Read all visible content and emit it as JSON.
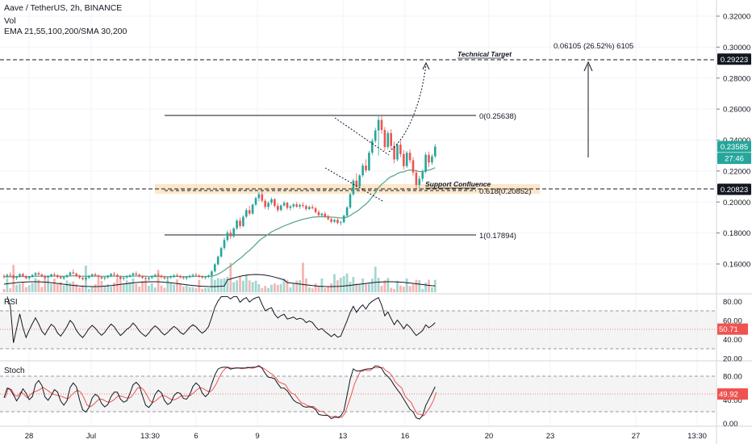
{
  "header": {
    "symbol_line": "Aave / TetherUS, 2h, BINANCE",
    "vol_label": "Vol",
    "ma_line": "EMA 21,55,100,200/SMA 30,200"
  },
  "chart_data": {
    "type": "candlestick",
    "price_axis": {
      "ticks": [
        "0.32000",
        "0.30000",
        "0.28000",
        "0.26000",
        "0.24000",
        "0.22000",
        "0.20000",
        "0.18000",
        "0.16000"
      ],
      "ylim": [
        0.145,
        0.33
      ]
    },
    "price_badges": [
      {
        "label": "0.29223",
        "value": 0.29223,
        "color": "#131722"
      },
      {
        "label": "0.23585",
        "value": 0.23585,
        "color": "#26a69a"
      },
      {
        "label": "27:46",
        "value": 0.2282,
        "color": "#26a69a"
      },
      {
        "label": "0.20823",
        "value": 0.20823,
        "color": "#131722"
      }
    ],
    "time_axis": [
      "28",
      "Jul",
      "13:30",
      "6",
      "9",
      "13",
      "16",
      "20",
      "23",
      "27",
      "13:30"
    ],
    "annotations": {
      "technical_target": "Technical Target",
      "measure": "0.06105 (26.52%) 6105",
      "support": "Support Confluence",
      "fib_0": "0(0.25638)",
      "fib_618": "0.618(0.20852)",
      "fib_1": "1(0.17894)"
    },
    "key_levels": {
      "target": 0.29223,
      "support": 0.20823,
      "fib_0": 0.25638,
      "fib_618": 0.20852,
      "fib_1": 0.17894
    },
    "candles": [
      [
        0.1523,
        0.1534,
        0.1504,
        0.1517
      ],
      [
        0.1517,
        0.1538,
        0.1508,
        0.153
      ],
      [
        0.153,
        0.1546,
        0.1521,
        0.1526
      ],
      [
        0.1526,
        0.1532,
        0.1503,
        0.151
      ],
      [
        0.151,
        0.1525,
        0.1496,
        0.1519
      ],
      [
        0.1519,
        0.1541,
        0.1512,
        0.1535
      ],
      [
        0.1535,
        0.1543,
        0.1515,
        0.1522
      ],
      [
        0.1522,
        0.153,
        0.15,
        0.1508
      ],
      [
        0.1508,
        0.1524,
        0.1495,
        0.1518
      ],
      [
        0.1518,
        0.1536,
        0.151,
        0.1529
      ],
      [
        0.1529,
        0.1548,
        0.152,
        0.1541
      ],
      [
        0.1541,
        0.1552,
        0.1526,
        0.1532
      ],
      [
        0.1532,
        0.154,
        0.1514,
        0.1519
      ],
      [
        0.1519,
        0.1531,
        0.1501,
        0.1511
      ],
      [
        0.1511,
        0.1528,
        0.1498,
        0.1522
      ],
      [
        0.1522,
        0.1539,
        0.1514,
        0.1533
      ],
      [
        0.1533,
        0.1545,
        0.1522,
        0.1528
      ],
      [
        0.1528,
        0.1535,
        0.1508,
        0.1515
      ],
      [
        0.1515,
        0.1526,
        0.15,
        0.1507
      ],
      [
        0.1507,
        0.1521,
        0.1495,
        0.1516
      ],
      [
        0.1516,
        0.1534,
        0.1508,
        0.1528
      ],
      [
        0.1528,
        0.1551,
        0.152,
        0.1545
      ],
      [
        0.1545,
        0.1566,
        0.1532,
        0.1538
      ],
      [
        0.1538,
        0.1546,
        0.1515,
        0.1522
      ],
      [
        0.1522,
        0.153,
        0.1502,
        0.151
      ],
      [
        0.151,
        0.1522,
        0.1494,
        0.1501
      ],
      [
        0.1501,
        0.1516,
        0.149,
        0.1511
      ],
      [
        0.1511,
        0.1529,
        0.1503,
        0.1524
      ],
      [
        0.1524,
        0.154,
        0.1515,
        0.1533
      ],
      [
        0.1533,
        0.1544,
        0.152,
        0.1526
      ],
      [
        0.1526,
        0.1533,
        0.1509,
        0.1515
      ],
      [
        0.1515,
        0.1524,
        0.1499,
        0.1506
      ],
      [
        0.1506,
        0.1519,
        0.1494,
        0.1513
      ],
      [
        0.1513,
        0.153,
        0.1505,
        0.1525
      ],
      [
        0.1525,
        0.1542,
        0.1516,
        0.1536
      ],
      [
        0.1536,
        0.1549,
        0.1524,
        0.153
      ],
      [
        0.153,
        0.1538,
        0.1511,
        0.1517
      ],
      [
        0.1517,
        0.1526,
        0.15,
        0.1505
      ],
      [
        0.1505,
        0.1518,
        0.1492,
        0.1512
      ],
      [
        0.1512,
        0.1529,
        0.1503,
        0.1521
      ],
      [
        0.1521,
        0.1536,
        0.1512,
        0.1527
      ],
      [
        0.1527,
        0.1546,
        0.1518,
        0.1539
      ],
      [
        0.1539,
        0.1552,
        0.1526,
        0.1531
      ],
      [
        0.1531,
        0.1538,
        0.1512,
        0.1519
      ],
      [
        0.1519,
        0.1529,
        0.1503,
        0.151
      ],
      [
        0.151,
        0.1521,
        0.1495,
        0.1503
      ],
      [
        0.1503,
        0.1517,
        0.1491,
        0.1511
      ],
      [
        0.1511,
        0.1528,
        0.1502,
        0.1522
      ],
      [
        0.1522,
        0.1538,
        0.1513,
        0.153
      ],
      [
        0.153,
        0.1542,
        0.1519,
        0.1524
      ],
      [
        0.1524,
        0.1532,
        0.1507,
        0.1514
      ],
      [
        0.1514,
        0.1524,
        0.1498,
        0.1506
      ],
      [
        0.1506,
        0.1518,
        0.1493,
        0.1512
      ],
      [
        0.1512,
        0.1526,
        0.1503,
        0.152
      ],
      [
        0.152,
        0.1535,
        0.1511,
        0.1527
      ],
      [
        0.1527,
        0.154,
        0.1518,
        0.1522
      ],
      [
        0.1522,
        0.153,
        0.1506,
        0.1513
      ],
      [
        0.1513,
        0.1524,
        0.1499,
        0.1508
      ],
      [
        0.1508,
        0.1519,
        0.1495,
        0.1515
      ],
      [
        0.1515,
        0.1531,
        0.1507,
        0.1524
      ],
      [
        0.1524,
        0.1538,
        0.1515,
        0.153
      ],
      [
        0.153,
        0.1543,
        0.152,
        0.1526
      ],
      [
        0.1526,
        0.1534,
        0.151,
        0.1518
      ],
      [
        0.1518,
        0.1527,
        0.1504,
        0.1512
      ],
      [
        0.1512,
        0.1523,
        0.15,
        0.1517
      ],
      [
        0.1517,
        0.1533,
        0.1509,
        0.1526
      ],
      [
        0.1526,
        0.156,
        0.152,
        0.1552
      ],
      [
        0.1552,
        0.1606,
        0.1545,
        0.1598
      ],
      [
        0.1598,
        0.1655,
        0.159,
        0.1648
      ],
      [
        0.1648,
        0.1712,
        0.164,
        0.1703
      ],
      [
        0.1703,
        0.1772,
        0.169,
        0.1755
      ],
      [
        0.1755,
        0.1816,
        0.1742,
        0.1802
      ],
      [
        0.1802,
        0.1822,
        0.176,
        0.1778
      ],
      [
        0.1778,
        0.1838,
        0.177,
        0.183
      ],
      [
        0.183,
        0.189,
        0.1818,
        0.188
      ],
      [
        0.188,
        0.19,
        0.183,
        0.1845
      ],
      [
        0.1845,
        0.1915,
        0.1838,
        0.1905
      ],
      [
        0.1905,
        0.196,
        0.1895,
        0.1948
      ],
      [
        0.1948,
        0.1975,
        0.1912,
        0.1925
      ],
      [
        0.1925,
        0.199,
        0.1918,
        0.1983
      ],
      [
        0.1983,
        0.2035,
        0.1975,
        0.2025
      ],
      [
        0.2025,
        0.2065,
        0.2005,
        0.205
      ],
      [
        0.205,
        0.2072,
        0.1995,
        0.2008
      ],
      [
        0.2008,
        0.202,
        0.1955,
        0.1968
      ],
      [
        0.1968,
        0.2005,
        0.195,
        0.1995
      ],
      [
        0.1995,
        0.203,
        0.1982,
        0.2018
      ],
      [
        0.2018,
        0.2025,
        0.1965,
        0.1975
      ],
      [
        0.1975,
        0.1992,
        0.1935,
        0.1948
      ],
      [
        0.1948,
        0.1985,
        0.194,
        0.1978
      ],
      [
        0.1978,
        0.2008,
        0.1968,
        0.1995
      ],
      [
        0.1995,
        0.2002,
        0.195,
        0.1962
      ],
      [
        0.1962,
        0.1982,
        0.1945,
        0.1972
      ],
      [
        0.1972,
        0.1994,
        0.1958,
        0.1985
      ],
      [
        0.1985,
        0.2,
        0.1962,
        0.197
      ],
      [
        0.197,
        0.199,
        0.1955,
        0.198
      ],
      [
        0.198,
        0.1998,
        0.1962,
        0.1975
      ],
      [
        0.1975,
        0.1984,
        0.1944,
        0.1955
      ],
      [
        0.1955,
        0.1978,
        0.1948,
        0.1968
      ],
      [
        0.1968,
        0.1984,
        0.1952,
        0.196
      ],
      [
        0.196,
        0.197,
        0.1925,
        0.1935
      ],
      [
        0.1935,
        0.195,
        0.1905,
        0.1915
      ],
      [
        0.1915,
        0.1932,
        0.19,
        0.1925
      ],
      [
        0.1925,
        0.1938,
        0.1895,
        0.1905
      ],
      [
        0.1905,
        0.1918,
        0.188,
        0.189
      ],
      [
        0.189,
        0.19,
        0.1862,
        0.1872
      ],
      [
        0.1872,
        0.1893,
        0.1866,
        0.1885
      ],
      [
        0.1885,
        0.1895,
        0.1855,
        0.1865
      ],
      [
        0.1865,
        0.188,
        0.1848,
        0.187
      ],
      [
        0.187,
        0.192,
        0.1862,
        0.1912
      ],
      [
        0.1912,
        0.1975,
        0.1905,
        0.1965
      ],
      [
        0.1965,
        0.206,
        0.1955,
        0.205
      ],
      [
        0.205,
        0.215,
        0.204,
        0.2138
      ],
      [
        0.2138,
        0.2185,
        0.2085,
        0.21
      ],
      [
        0.21,
        0.218,
        0.209,
        0.2172
      ],
      [
        0.2172,
        0.225,
        0.216,
        0.2235
      ],
      [
        0.2235,
        0.2275,
        0.219,
        0.2205
      ],
      [
        0.2205,
        0.233,
        0.2198,
        0.2318
      ],
      [
        0.2318,
        0.241,
        0.2305,
        0.2395
      ],
      [
        0.2395,
        0.248,
        0.238,
        0.2462
      ],
      [
        0.2462,
        0.256,
        0.23,
        0.253
      ],
      [
        0.253,
        0.2564,
        0.244,
        0.2465
      ],
      [
        0.2465,
        0.2485,
        0.233,
        0.2355
      ],
      [
        0.2355,
        0.246,
        0.234,
        0.2445
      ],
      [
        0.2445,
        0.247,
        0.234,
        0.2362
      ],
      [
        0.2362,
        0.239,
        0.225,
        0.2275
      ],
      [
        0.2275,
        0.238,
        0.2262,
        0.237
      ],
      [
        0.237,
        0.2395,
        0.229,
        0.231
      ],
      [
        0.231,
        0.2335,
        0.221,
        0.2232
      ],
      [
        0.2232,
        0.233,
        0.222,
        0.2318
      ],
      [
        0.2318,
        0.234,
        0.225,
        0.227
      ],
      [
        0.227,
        0.229,
        0.217,
        0.219
      ],
      [
        0.219,
        0.221,
        0.209,
        0.211
      ],
      [
        0.211,
        0.217,
        0.2085,
        0.215
      ],
      [
        0.215,
        0.221,
        0.213,
        0.2195
      ],
      [
        0.2195,
        0.232,
        0.2185,
        0.2305
      ],
      [
        0.2305,
        0.2325,
        0.2225,
        0.2255
      ],
      [
        0.2255,
        0.231,
        0.224,
        0.2295
      ],
      [
        0.2295,
        0.2375,
        0.2285,
        0.2358
      ]
    ],
    "rsi": {
      "label": "RSI",
      "ticks": [
        "80.00",
        "60.00",
        "40.00",
        "20.00"
      ],
      "band": [
        30,
        70
      ],
      "last": "50.71",
      "ylim": [
        15,
        85
      ]
    },
    "stoch": {
      "label": "Stoch",
      "ticks": [
        "80.00",
        "40.00",
        "0.00"
      ],
      "band": [
        20,
        80
      ],
      "last": "49.92",
      "ylim": [
        -5,
        105
      ]
    }
  }
}
